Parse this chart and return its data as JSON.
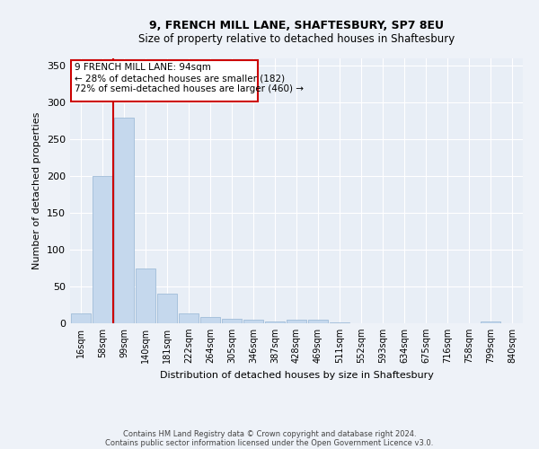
{
  "title1": "9, FRENCH MILL LANE, SHAFTESBURY, SP7 8EU",
  "title2": "Size of property relative to detached houses in Shaftesbury",
  "xlabel": "Distribution of detached houses by size in Shaftesbury",
  "ylabel": "Number of detached properties",
  "bar_color": "#c5d8ed",
  "bar_edge_color": "#a0bcd8",
  "bin_labels": [
    "16sqm",
    "58sqm",
    "99sqm",
    "140sqm",
    "181sqm",
    "222sqm",
    "264sqm",
    "305sqm",
    "346sqm",
    "387sqm",
    "428sqm",
    "469sqm",
    "511sqm",
    "552sqm",
    "593sqm",
    "634sqm",
    "675sqm",
    "716sqm",
    "758sqm",
    "799sqm",
    "840sqm"
  ],
  "bar_values": [
    13,
    200,
    280,
    75,
    40,
    13,
    8,
    6,
    5,
    2,
    5,
    5,
    1,
    0,
    0,
    0,
    0,
    0,
    0,
    2,
    0
  ],
  "ylim": [
    0,
    360
  ],
  "yticks": [
    0,
    50,
    100,
    150,
    200,
    250,
    300,
    350
  ],
  "annotation_text_line1": "9 FRENCH MILL LANE: 94sqm",
  "annotation_text_line2": "← 28% of detached houses are smaller (182)",
  "annotation_text_line3": "72% of semi-detached houses are larger (460) →",
  "footnote_line1": "Contains HM Land Registry data © Crown copyright and database right 2024.",
  "footnote_line2": "Contains public sector information licensed under the Open Government Licence v3.0.",
  "background_color": "#eef2f8",
  "plot_background": "#e8eef6",
  "grid_color": "#ffffff",
  "red_line_color": "#cc0000",
  "red_box_color": "#cc0000"
}
